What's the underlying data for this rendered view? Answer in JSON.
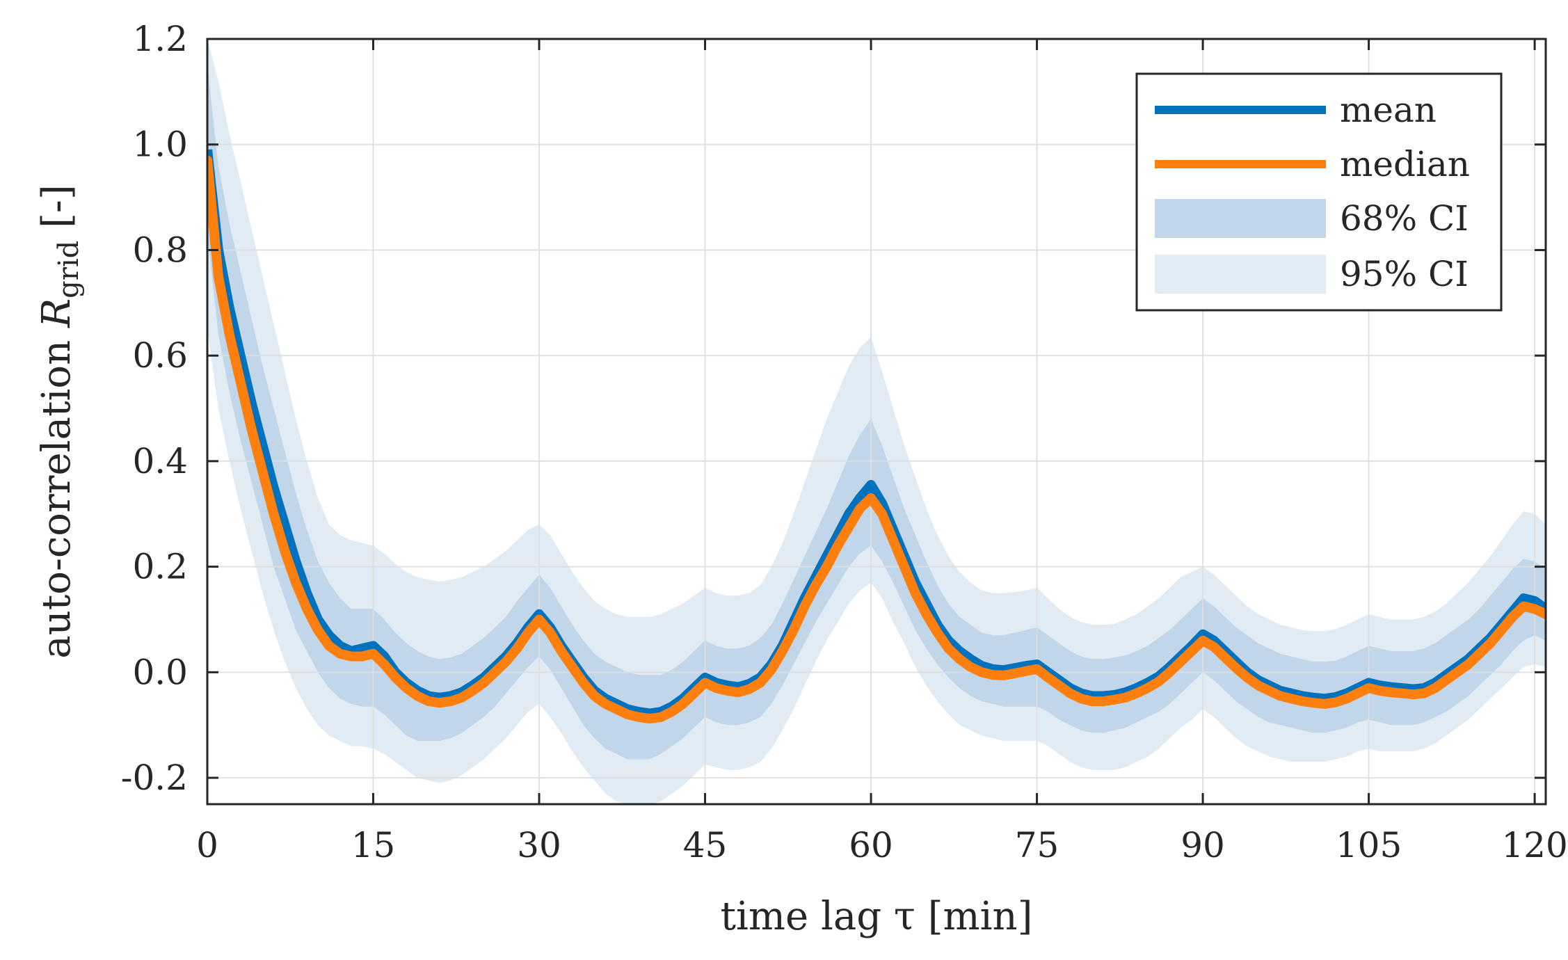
{
  "chart_data": {
    "type": "line",
    "title": "",
    "xlabel": "time lag τ [min]",
    "ylabel_main": "auto-correlation ",
    "ylabel_symbol": "R",
    "ylabel_subscript": "grid",
    "ylabel_unit": " [-]",
    "xlim": [
      0,
      121
    ],
    "ylim": [
      -0.25,
      1.2
    ],
    "xticks": [
      0,
      15,
      30,
      45,
      60,
      75,
      90,
      105,
      120
    ],
    "xtick_labels": [
      "0",
      "15",
      "30",
      "45",
      "60",
      "75",
      "90",
      "105",
      "120"
    ],
    "yticks": [
      -0.2,
      0.0,
      0.2,
      0.4,
      0.6,
      0.8,
      1.0,
      1.2
    ],
    "ytick_labels": [
      "-0.2",
      "0.0",
      "0.2",
      "0.4",
      "0.6",
      "0.8",
      "1.0",
      "1.2"
    ],
    "grid": true,
    "legend_position": "top-right",
    "legend": [
      "mean",
      "median",
      "68% CI",
      "95% CI"
    ],
    "colors": {
      "mean": "#0072BD",
      "median": "#FF7F0E",
      "ci68": "#C2D6EA",
      "ci95": "#E1EBF4",
      "grid": "#DEDEDE",
      "axis": "#262626"
    },
    "x": [
      0,
      1,
      2,
      3,
      4,
      5,
      6,
      7,
      8,
      9,
      10,
      11,
      12,
      13,
      14,
      15,
      16,
      17,
      18,
      19,
      20,
      21,
      22,
      23,
      24,
      25,
      26,
      27,
      28,
      29,
      30,
      31,
      32,
      33,
      34,
      35,
      36,
      37,
      38,
      39,
      40,
      41,
      42,
      43,
      44,
      45,
      46,
      47,
      48,
      49,
      50,
      51,
      52,
      53,
      54,
      55,
      56,
      57,
      58,
      59,
      60,
      61,
      62,
      63,
      64,
      65,
      66,
      67,
      68,
      69,
      70,
      71,
      72,
      73,
      74,
      75,
      76,
      77,
      78,
      79,
      80,
      81,
      82,
      83,
      84,
      85,
      86,
      87,
      88,
      89,
      90,
      91,
      92,
      93,
      94,
      95,
      96,
      97,
      98,
      99,
      100,
      101,
      102,
      103,
      104,
      105,
      106,
      107,
      108,
      109,
      110,
      111,
      112,
      113,
      114,
      115,
      116,
      117,
      118,
      119,
      120,
      121
    ],
    "series": [
      {
        "name": "mean",
        "values": [
          0.99,
          0.8,
          0.69,
          0.6,
          0.51,
          0.43,
          0.35,
          0.28,
          0.21,
          0.15,
          0.1,
          0.07,
          0.05,
          0.04,
          0.045,
          0.05,
          0.03,
          0.0,
          -0.02,
          -0.035,
          -0.045,
          -0.048,
          -0.045,
          -0.038,
          -0.025,
          -0.01,
          0.01,
          0.03,
          0.055,
          0.085,
          0.11,
          0.085,
          0.05,
          0.02,
          -0.01,
          -0.035,
          -0.05,
          -0.06,
          -0.07,
          -0.075,
          -0.078,
          -0.075,
          -0.065,
          -0.05,
          -0.03,
          -0.01,
          -0.02,
          -0.025,
          -0.028,
          -0.022,
          -0.01,
          0.015,
          0.05,
          0.095,
          0.14,
          0.18,
          0.22,
          0.26,
          0.3,
          0.33,
          0.355,
          0.32,
          0.27,
          0.22,
          0.17,
          0.13,
          0.09,
          0.06,
          0.04,
          0.025,
          0.012,
          0.006,
          0.004,
          0.008,
          0.012,
          0.015,
          0.0,
          -0.015,
          -0.03,
          -0.04,
          -0.045,
          -0.045,
          -0.043,
          -0.038,
          -0.03,
          -0.02,
          -0.008,
          0.01,
          0.03,
          0.05,
          0.072,
          0.06,
          0.04,
          0.02,
          0.0,
          -0.015,
          -0.025,
          -0.035,
          -0.04,
          -0.045,
          -0.048,
          -0.05,
          -0.047,
          -0.04,
          -0.03,
          -0.02,
          -0.025,
          -0.028,
          -0.03,
          -0.032,
          -0.03,
          -0.02,
          -0.005,
          0.01,
          0.025,
          0.045,
          0.065,
          0.09,
          0.115,
          0.14,
          0.135,
          0.12
        ]
      },
      {
        "name": "median",
        "values": [
          0.97,
          0.75,
          0.64,
          0.55,
          0.46,
          0.38,
          0.3,
          0.23,
          0.17,
          0.12,
          0.08,
          0.05,
          0.035,
          0.03,
          0.03,
          0.035,
          0.015,
          -0.01,
          -0.03,
          -0.045,
          -0.055,
          -0.058,
          -0.055,
          -0.048,
          -0.035,
          -0.02,
          0.0,
          0.02,
          0.045,
          0.075,
          0.1,
          0.075,
          0.04,
          0.01,
          -0.02,
          -0.045,
          -0.06,
          -0.07,
          -0.08,
          -0.085,
          -0.088,
          -0.085,
          -0.075,
          -0.06,
          -0.04,
          -0.02,
          -0.03,
          -0.035,
          -0.038,
          -0.032,
          -0.02,
          0.005,
          0.04,
          0.08,
          0.125,
          0.165,
          0.2,
          0.24,
          0.275,
          0.31,
          0.33,
          0.3,
          0.25,
          0.2,
          0.15,
          0.11,
          0.075,
          0.045,
          0.025,
          0.01,
          0.0,
          -0.005,
          -0.006,
          -0.002,
          0.002,
          0.006,
          -0.01,
          -0.025,
          -0.04,
          -0.05,
          -0.055,
          -0.055,
          -0.052,
          -0.048,
          -0.04,
          -0.03,
          -0.018,
          0.0,
          0.02,
          0.04,
          0.06,
          0.048,
          0.028,
          0.008,
          -0.01,
          -0.025,
          -0.035,
          -0.045,
          -0.05,
          -0.055,
          -0.058,
          -0.06,
          -0.057,
          -0.05,
          -0.04,
          -0.03,
          -0.035,
          -0.038,
          -0.04,
          -0.042,
          -0.04,
          -0.03,
          -0.015,
          0.0,
          0.015,
          0.035,
          0.055,
          0.08,
          0.105,
          0.125,
          0.12,
          0.11
        ]
      },
      {
        "name": "68% CI",
        "lower": [
          0.83,
          0.64,
          0.53,
          0.44,
          0.36,
          0.28,
          0.2,
          0.14,
          0.08,
          0.04,
          0.0,
          -0.03,
          -0.05,
          -0.06,
          -0.065,
          -0.065,
          -0.08,
          -0.1,
          -0.12,
          -0.13,
          -0.13,
          -0.13,
          -0.125,
          -0.115,
          -0.1,
          -0.085,
          -0.065,
          -0.04,
          -0.015,
          0.01,
          0.03,
          0.005,
          -0.03,
          -0.065,
          -0.1,
          -0.125,
          -0.145,
          -0.155,
          -0.165,
          -0.165,
          -0.165,
          -0.155,
          -0.14,
          -0.125,
          -0.105,
          -0.085,
          -0.095,
          -0.1,
          -0.1,
          -0.095,
          -0.085,
          -0.06,
          -0.025,
          0.015,
          0.055,
          0.095,
          0.13,
          0.165,
          0.2,
          0.225,
          0.24,
          0.21,
          0.17,
          0.125,
          0.08,
          0.045,
          0.015,
          -0.01,
          -0.03,
          -0.045,
          -0.055,
          -0.06,
          -0.065,
          -0.065,
          -0.065,
          -0.065,
          -0.075,
          -0.09,
          -0.1,
          -0.11,
          -0.115,
          -0.115,
          -0.11,
          -0.105,
          -0.095,
          -0.085,
          -0.075,
          -0.06,
          -0.04,
          -0.02,
          0.0,
          -0.015,
          -0.035,
          -0.055,
          -0.07,
          -0.085,
          -0.095,
          -0.1,
          -0.105,
          -0.11,
          -0.115,
          -0.115,
          -0.11,
          -0.105,
          -0.095,
          -0.09,
          -0.095,
          -0.1,
          -0.1,
          -0.1,
          -0.095,
          -0.085,
          -0.075,
          -0.06,
          -0.045,
          -0.025,
          -0.005,
          0.015,
          0.04,
          0.06,
          0.07,
          0.06
        ],
        "upper": [
          1.15,
          0.96,
          0.85,
          0.76,
          0.67,
          0.58,
          0.5,
          0.42,
          0.34,
          0.27,
          0.21,
          0.17,
          0.14,
          0.12,
          0.12,
          0.12,
          0.1,
          0.075,
          0.055,
          0.04,
          0.03,
          0.025,
          0.028,
          0.035,
          0.05,
          0.065,
          0.085,
          0.105,
          0.135,
          0.16,
          0.185,
          0.16,
          0.125,
          0.09,
          0.06,
          0.035,
          0.02,
          0.01,
          0.0,
          -0.005,
          -0.005,
          -0.005,
          0.005,
          0.02,
          0.04,
          0.06,
          0.05,
          0.045,
          0.045,
          0.05,
          0.065,
          0.09,
          0.13,
          0.175,
          0.22,
          0.265,
          0.31,
          0.36,
          0.41,
          0.45,
          0.48,
          0.43,
          0.37,
          0.31,
          0.26,
          0.21,
          0.165,
          0.13,
          0.105,
          0.09,
          0.075,
          0.07,
          0.07,
          0.075,
          0.08,
          0.085,
          0.07,
          0.055,
          0.04,
          0.03,
          0.025,
          0.025,
          0.028,
          0.032,
          0.04,
          0.05,
          0.065,
          0.08,
          0.1,
          0.12,
          0.14,
          0.125,
          0.105,
          0.085,
          0.07,
          0.055,
          0.045,
          0.035,
          0.03,
          0.025,
          0.02,
          0.02,
          0.022,
          0.03,
          0.04,
          0.05,
          0.045,
          0.04,
          0.04,
          0.04,
          0.045,
          0.055,
          0.07,
          0.085,
          0.1,
          0.12,
          0.145,
          0.17,
          0.195,
          0.215,
          0.21,
          0.195
        ]
      },
      {
        "name": "95% CI",
        "lower": [
          0.65,
          0.5,
          0.4,
          0.31,
          0.23,
          0.15,
          0.08,
          0.02,
          -0.03,
          -0.07,
          -0.1,
          -0.12,
          -0.13,
          -0.14,
          -0.14,
          -0.145,
          -0.155,
          -0.17,
          -0.185,
          -0.2,
          -0.205,
          -0.21,
          -0.205,
          -0.195,
          -0.18,
          -0.165,
          -0.145,
          -0.125,
          -0.1,
          -0.075,
          -0.06,
          -0.085,
          -0.115,
          -0.15,
          -0.18,
          -0.205,
          -0.23,
          -0.245,
          -0.255,
          -0.26,
          -0.255,
          -0.245,
          -0.23,
          -0.215,
          -0.195,
          -0.175,
          -0.18,
          -0.185,
          -0.185,
          -0.18,
          -0.17,
          -0.145,
          -0.11,
          -0.07,
          -0.025,
          0.02,
          0.06,
          0.095,
          0.13,
          0.155,
          0.17,
          0.14,
          0.095,
          0.055,
          0.01,
          -0.025,
          -0.055,
          -0.08,
          -0.1,
          -0.11,
          -0.12,
          -0.125,
          -0.13,
          -0.13,
          -0.13,
          -0.13,
          -0.14,
          -0.155,
          -0.17,
          -0.18,
          -0.185,
          -0.185,
          -0.185,
          -0.18,
          -0.17,
          -0.16,
          -0.145,
          -0.125,
          -0.105,
          -0.09,
          -0.07,
          -0.085,
          -0.105,
          -0.125,
          -0.14,
          -0.15,
          -0.16,
          -0.165,
          -0.17,
          -0.17,
          -0.17,
          -0.17,
          -0.165,
          -0.16,
          -0.15,
          -0.145,
          -0.15,
          -0.15,
          -0.15,
          -0.15,
          -0.145,
          -0.135,
          -0.12,
          -0.105,
          -0.09,
          -0.07,
          -0.05,
          -0.03,
          -0.01,
          0.01,
          0.015,
          0.01
        ],
        "upper": [
          1.2,
          1.12,
          1.02,
          0.93,
          0.84,
          0.75,
          0.66,
          0.57,
          0.48,
          0.4,
          0.33,
          0.28,
          0.26,
          0.25,
          0.245,
          0.24,
          0.225,
          0.205,
          0.19,
          0.18,
          0.175,
          0.172,
          0.175,
          0.18,
          0.19,
          0.2,
          0.215,
          0.23,
          0.25,
          0.27,
          0.28,
          0.26,
          0.225,
          0.19,
          0.16,
          0.135,
          0.12,
          0.11,
          0.105,
          0.105,
          0.105,
          0.11,
          0.12,
          0.13,
          0.145,
          0.16,
          0.15,
          0.145,
          0.145,
          0.15,
          0.165,
          0.2,
          0.245,
          0.3,
          0.36,
          0.42,
          0.48,
          0.53,
          0.58,
          0.615,
          0.635,
          0.57,
          0.5,
          0.43,
          0.37,
          0.31,
          0.26,
          0.22,
          0.19,
          0.17,
          0.155,
          0.15,
          0.15,
          0.152,
          0.155,
          0.16,
          0.14,
          0.12,
          0.105,
          0.095,
          0.09,
          0.09,
          0.092,
          0.1,
          0.11,
          0.125,
          0.14,
          0.16,
          0.18,
          0.19,
          0.2,
          0.185,
          0.165,
          0.145,
          0.125,
          0.11,
          0.1,
          0.09,
          0.085,
          0.08,
          0.078,
          0.078,
          0.082,
          0.09,
          0.1,
          0.11,
          0.105,
          0.1,
          0.1,
          0.1,
          0.105,
          0.115,
          0.13,
          0.15,
          0.17,
          0.195,
          0.22,
          0.25,
          0.28,
          0.305,
          0.3,
          0.28
        ]
      }
    ]
  }
}
